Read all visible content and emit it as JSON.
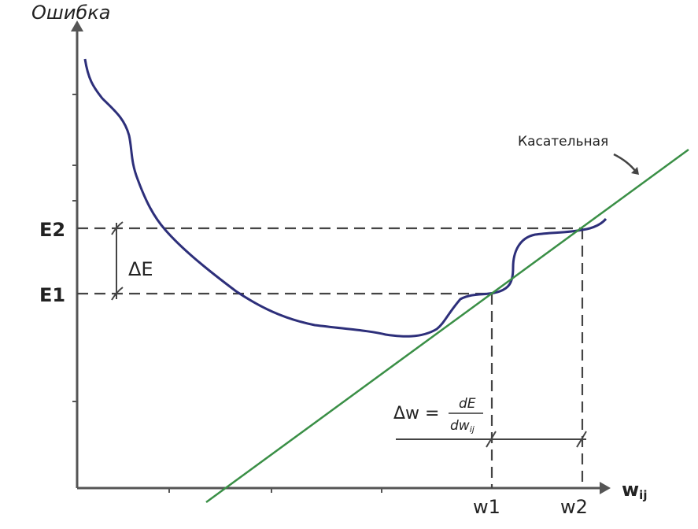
{
  "axes": {
    "y_label": "Ошибка",
    "x_label": "w",
    "x_label_sub": "ij"
  },
  "levels": {
    "e2": "E2",
    "e1": "E1",
    "delta_e": "ΔE"
  },
  "weights": {
    "w1": "w1",
    "w2": "w2"
  },
  "tangent_label": "Касательная",
  "formula": {
    "lhs": "Δw =",
    "numerator": "dE",
    "denominator": "dw",
    "denominator_sub": "ij"
  }
}
